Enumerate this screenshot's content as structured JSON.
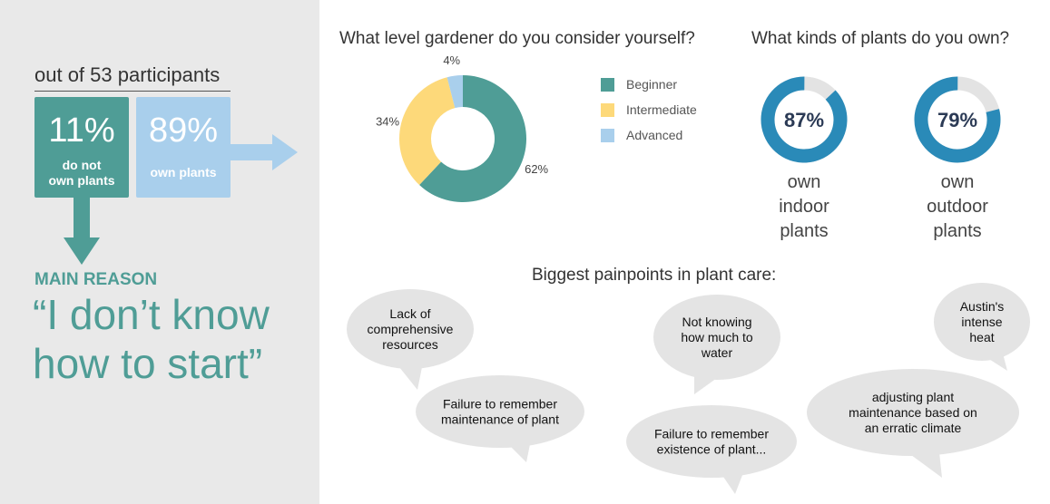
{
  "summary": {
    "participants": "out of 53 participants",
    "not_own": {
      "pct": "11%",
      "text": "do not\nown plants"
    },
    "own": {
      "pct": "89%",
      "text": "own plants"
    },
    "main_reason_label": "MAIN REASON",
    "main_reason_quote": "“I don’t know\nhow to start”"
  },
  "colors": {
    "teal": "#4f9d96",
    "yellow": "#fdd97a",
    "light_blue": "#a9cfec",
    "ring_blue": "#2a8ab8",
    "ring_track": "#e3e3e3",
    "panel_gray": "#e9e9e9",
    "bubble_gray": "#e4e4e4"
  },
  "headings": {
    "gardener": "What level gardener do you consider yourself?",
    "plants": "What kinds of plants do you own?",
    "painpoints": "Biggest painpoints in plant care:"
  },
  "chart_data": [
    {
      "type": "pie",
      "title": "What level gardener do you consider yourself?",
      "categories": [
        "Beginner",
        "Intermediate",
        "Advanced"
      ],
      "values": [
        62,
        34,
        4
      ],
      "labels": [
        "62%",
        "34%",
        "4%"
      ],
      "colors": [
        "#4f9d96",
        "#fdd97a",
        "#a9cfec"
      ],
      "legend": "right"
    },
    {
      "type": "pie",
      "title": "What kinds of plants do you own?",
      "categories": [
        "own indoor plants",
        "own outdoor plants"
      ],
      "values": [
        87,
        79
      ],
      "labels": [
        "87%",
        "79%"
      ]
    }
  ],
  "rings": [
    {
      "label": "87%",
      "caption": "own\nindoor\nplants"
    },
    {
      "label": "79%",
      "caption": "own\noutdoor\nplants"
    }
  ],
  "painpoints": [
    "Lack of\ncomprehensive\nresources",
    "Failure to remember\nmaintenance of plant",
    "Not knowing\nhow much to\nwater",
    "Failure to remember\nexistence of plant...",
    "Austin's\nintense\nheat",
    "adjusting plant\nmaintenance based on\nan erratic climate"
  ]
}
